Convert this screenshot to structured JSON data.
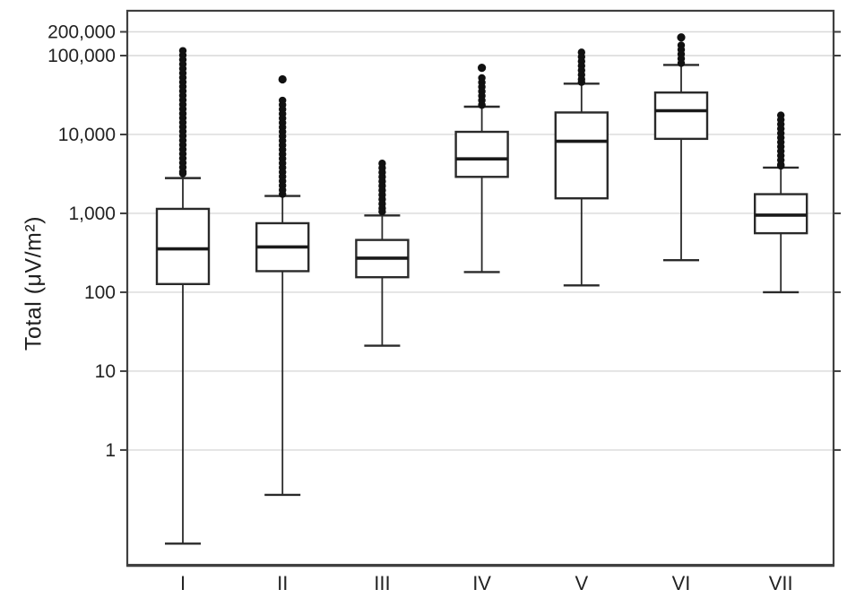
{
  "chart_data": {
    "type": "box",
    "title": "",
    "xlabel": "",
    "ylabel": "Total (μV/m²)",
    "yscale": "log",
    "ylim": [
      0.035,
      370000
    ],
    "grid": true,
    "legend": "none",
    "yticks": [
      {
        "value": 1,
        "label": "1"
      },
      {
        "value": 10,
        "label": "10"
      },
      {
        "value": 100,
        "label": "100"
      },
      {
        "value": 1000,
        "label": "1,000"
      },
      {
        "value": 10000,
        "label": "10,000"
      },
      {
        "value": 100000,
        "label": "100,000"
      },
      {
        "value": 200000,
        "label": "200,000"
      }
    ],
    "categories": [
      "I",
      "II",
      "III",
      "IV",
      "V",
      "VI",
      "VII"
    ],
    "boxes": [
      {
        "category": "I",
        "whisker_low": 0.065,
        "q1": 127,
        "median": 355,
        "q3": 1140,
        "whisker_high": 2800,
        "outlier_cluster": [
          3200,
          115000
        ],
        "outlier_points": []
      },
      {
        "category": "II",
        "whisker_low": 0.27,
        "q1": 185,
        "median": 375,
        "q3": 750,
        "whisker_high": 1660,
        "outlier_cluster": [
          1750,
          27000
        ],
        "outlier_points": [
          50000
        ]
      },
      {
        "category": "III",
        "whisker_low": 21,
        "q1": 155,
        "median": 270,
        "q3": 460,
        "whisker_high": 940,
        "outlier_cluster": [
          1050,
          4300
        ],
        "outlier_points": []
      },
      {
        "category": "IV",
        "whisker_low": 180,
        "q1": 2900,
        "median": 4900,
        "q3": 10800,
        "whisker_high": 22500,
        "outlier_cluster": [
          23500,
          52000
        ],
        "outlier_points": [
          70000
        ]
      },
      {
        "category": "V",
        "whisker_low": 122,
        "q1": 1550,
        "median": 8200,
        "q3": 19000,
        "whisker_high": 44000,
        "outlier_cluster": [
          46000,
          110000
        ],
        "outlier_points": []
      },
      {
        "category": "VI",
        "whisker_low": 255,
        "q1": 8800,
        "median": 20000,
        "q3": 34000,
        "whisker_high": 76000,
        "outlier_cluster": [
          80000,
          135000
        ],
        "outlier_points": [
          170000
        ]
      },
      {
        "category": "VII",
        "whisker_low": 100,
        "q1": 560,
        "median": 950,
        "q3": 1750,
        "whisker_high": 3800,
        "outlier_cluster": [
          4000,
          17500
        ],
        "outlier_points": []
      }
    ],
    "colors": {
      "box_stroke": "#2a2a2a",
      "box_fill": "#ffffff",
      "median": "#1a1a1a",
      "outlier_fill": "#111111",
      "gridline": "#d9d9d9",
      "frame": "#3f3f3f",
      "text": "#222222",
      "background": "#ffffff"
    }
  }
}
